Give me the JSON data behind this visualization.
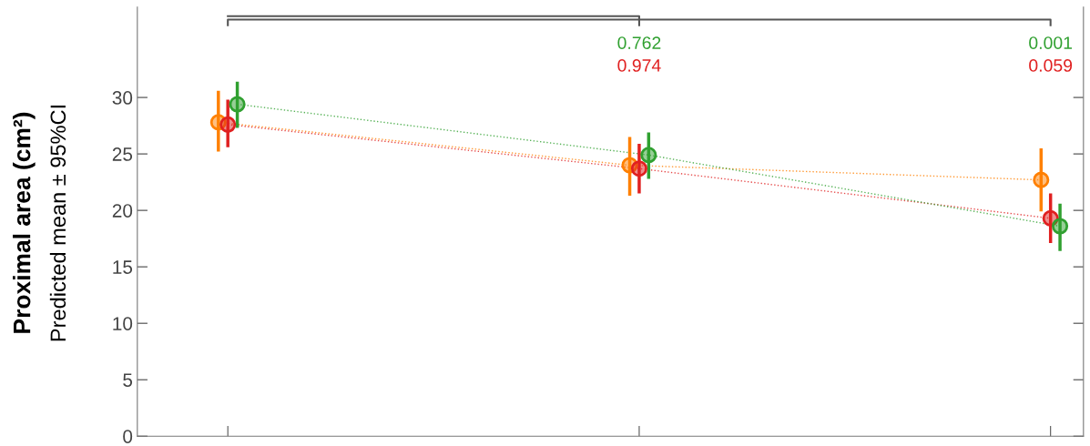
{
  "chart_data": {
    "type": "line",
    "ylabel": "Proximal area (cm²)\nPredicted mean ± 95%CI",
    "categories": [
      null,
      null,
      null
    ],
    "series": [
      {
        "color": "#ff8000",
        "values": [
          27.8,
          24.0,
          22.7
        ],
        "errors": [
          [
            25.2,
            30.6
          ],
          [
            21.3,
            26.5
          ],
          [
            19.9,
            25.5
          ]
        ]
      },
      {
        "color": "#e02020",
        "values": [
          27.6,
          23.7,
          19.3
        ],
        "errors": [
          [
            25.6,
            29.8
          ],
          [
            21.5,
            25.9
          ],
          [
            17.1,
            21.5
          ]
        ]
      },
      {
        "color": "#30a030",
        "values": [
          29.4,
          24.9,
          18.6
        ],
        "errors": [
          [
            27.3,
            31.4
          ],
          [
            22.8,
            26.9
          ],
          [
            16.4,
            20.6
          ]
        ]
      }
    ],
    "annotations": [
      "0.762",
      "0.974",
      "0.001",
      "0.059"
    ],
    "ylim": [
      0,
      38
    ],
    "yticks": [
      0,
      5,
      10,
      15,
      20,
      25,
      30
    ],
    "tick_labels": "y",
    "grid": false,
    "legend": false,
    "marker": "circle",
    "line_style": "dotted"
  }
}
